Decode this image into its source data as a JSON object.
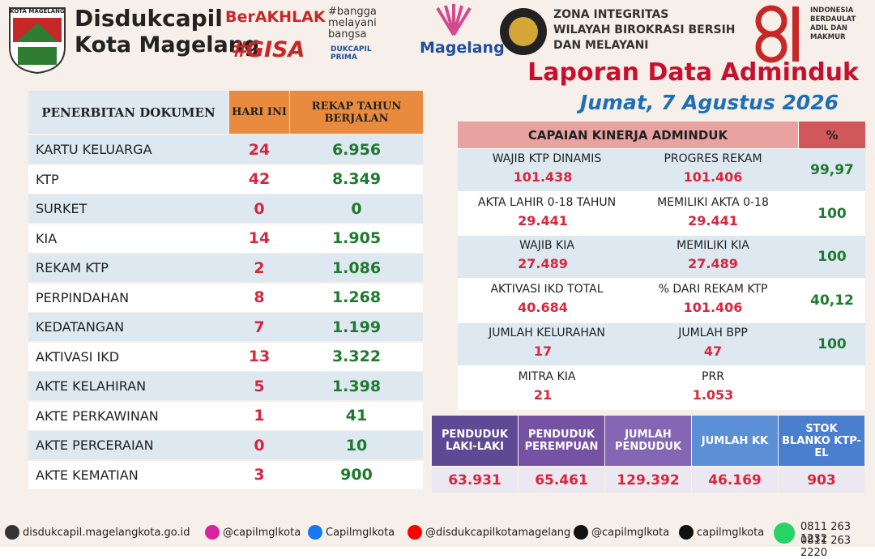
{
  "header": {
    "logo_label": "KOTA MAGELANG",
    "org_name": "Disdukcapil",
    "org_city": "Kota Magelang",
    "berakhlak": "BerAKHLAK",
    "bangga": "#bangga melayani bangsa",
    "gisa": "#GISA",
    "prima": "DUKCAPIL PRIMA",
    "magelang": "Magelang",
    "zona": [
      "ZONA INTEGRITAS",
      "WILAYAH BIROKRASI BERSIH",
      "DAN MELAYANI"
    ],
    "anniv": "81",
    "anniv_text": [
      "INDONESIA",
      "BERDAULAT",
      "ADIL DAN",
      "MAKMUR"
    ],
    "title": "Laporan Data Adminduk",
    "date": "Jumat, 7 Agustus 2026"
  },
  "table": {
    "headers": [
      "PENERBITAN DOKUMEN",
      "HARI INI",
      "REKAP TAHUN BERJALAN"
    ],
    "rows": [
      [
        "KARTU KELUARGA",
        "24",
        "6.956"
      ],
      [
        "KTP",
        "42",
        "8.349"
      ],
      [
        "SURKET",
        "0",
        "0"
      ],
      [
        "KIA",
        "14",
        "1.905"
      ],
      [
        "REKAM KTP",
        "2",
        "1.086"
      ],
      [
        "PERPINDAHAN",
        "8",
        "1.268"
      ],
      [
        "KEDATANGAN",
        "7",
        "1.199"
      ],
      [
        "AKTIVASI IKD",
        "13",
        "3.322"
      ],
      [
        "AKTE KELAHIRAN",
        "5",
        "1.398"
      ],
      [
        "AKTE PERKAWINAN",
        "1",
        "41"
      ],
      [
        "AKTE PERCERAIAN",
        "0",
        "10"
      ],
      [
        "AKTE KEMATIAN",
        "3",
        "900"
      ]
    ]
  },
  "performance": {
    "title": "CAPAIAN KINERJA ADMINDUK",
    "pct_header": "%",
    "rows": [
      {
        "left_label": "WAJIB KTP DINAMIS",
        "left_value": "101.438",
        "right_label": "PROGRES REKAM",
        "right_value": "101.406",
        "pct": "99,97"
      },
      {
        "left_label": "AKTA LAHIR 0-18 TAHUN",
        "left_value": "29.441",
        "right_label": "MEMILIKI AKTA 0-18",
        "right_value": "29.441",
        "pct": "100"
      },
      {
        "left_label": "WAJIB KIA",
        "left_value": "27.489",
        "right_label": "MEMILIKI KIA",
        "right_value": "27.489",
        "pct": "100"
      },
      {
        "left_label": "AKTIVASI IKD TOTAL",
        "left_value": "40.684",
        "right_label": "% DARI REKAM KTP",
        "right_value": "101.406",
        "pct": "40,12"
      },
      {
        "left_label": "JUMLAH KELURAHAN",
        "left_value": "17",
        "right_label": "JUMLAH BPP",
        "right_value": "47",
        "pct": "100"
      },
      {
        "left_label": "MITRA KIA",
        "left_value": "21",
        "right_label": "PRR",
        "right_value": "1.053"
      }
    ]
  },
  "population": [
    {
      "label": "PENDUDUK LAKI-LAKI",
      "value": "63.931"
    },
    {
      "label": "PENDUDUK PEREMPUAN",
      "value": "65.461"
    },
    {
      "label": "JUMLAH PENDUDUK",
      "value": "129.392"
    },
    {
      "label": "JUMLAH KK",
      "value": "46.169"
    },
    {
      "label": "STOK BLANKO KTP-EL",
      "value": "903"
    }
  ],
  "footer": {
    "website": "disdukcapil.magelangkota.go.id",
    "instagram": "@capilmglkota",
    "facebook": "Capilmglkota",
    "youtube": "@disdukcapilkotamagelang",
    "x": "@capilmglkota",
    "tiktok": "capilmglkota",
    "phones": [
      "0811 263 1232",
      "0811 263 2220"
    ]
  }
}
